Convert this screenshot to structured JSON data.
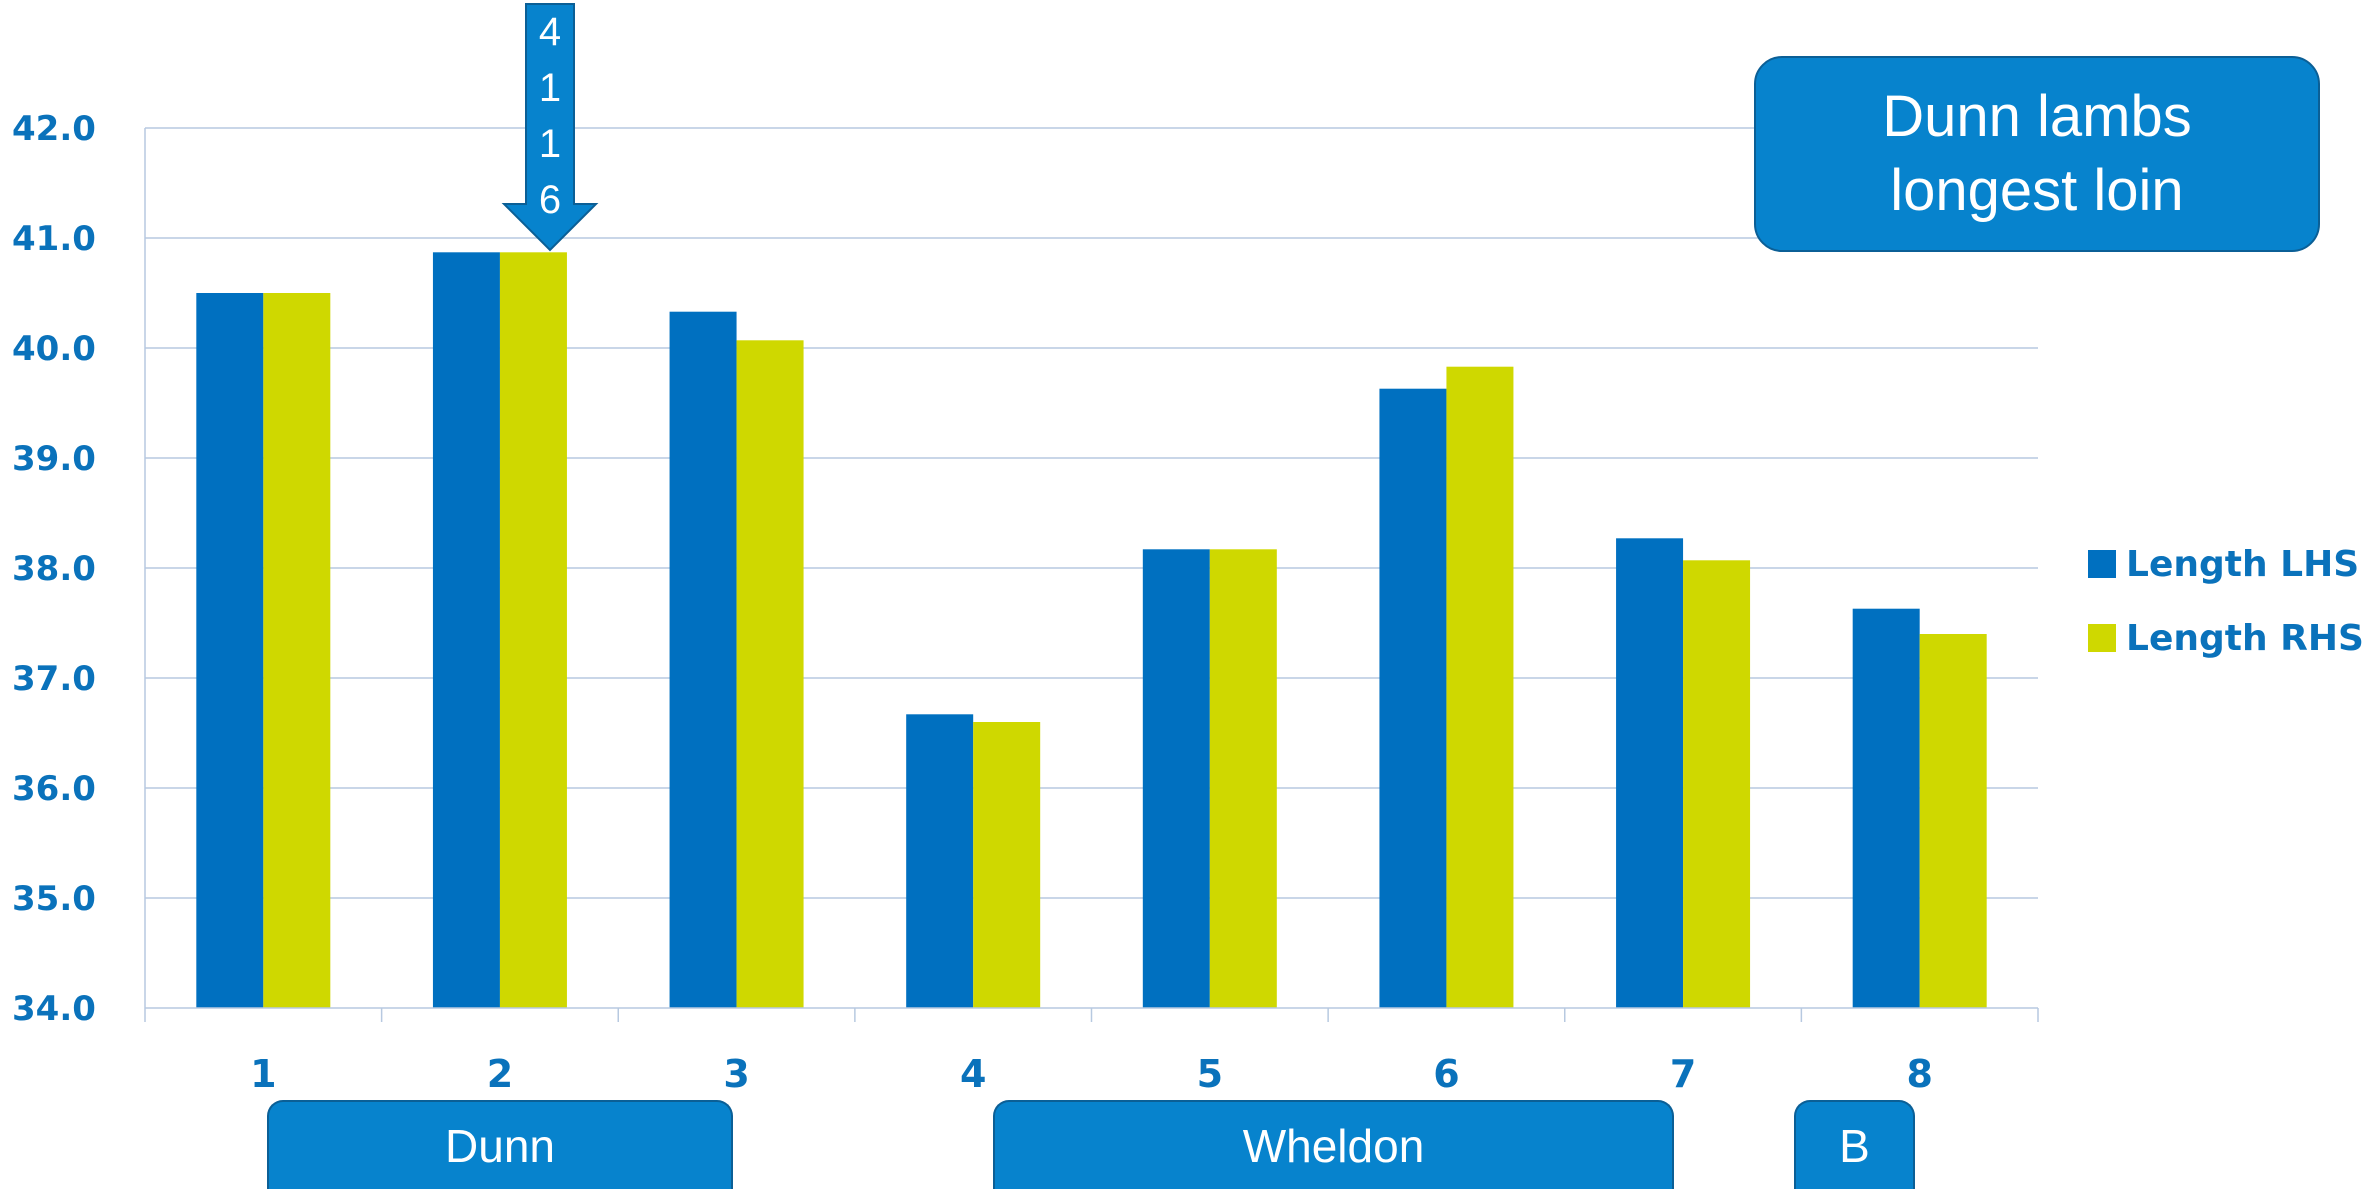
{
  "chart_data": {
    "type": "bar",
    "title": "",
    "xlabel": "",
    "ylabel": "",
    "categories": [
      "1",
      "2",
      "3",
      "4",
      "5",
      "6",
      "7",
      "8"
    ],
    "series": [
      {
        "name": "Length LHS",
        "color": "#0070c0",
        "values": [
          40.5,
          40.87,
          40.33,
          36.67,
          38.17,
          39.63,
          38.27,
          37.63
        ]
      },
      {
        "name": "Length RHS",
        "color": "#cfd800",
        "values": [
          40.5,
          40.87,
          40.07,
          36.6,
          38.17,
          39.83,
          38.07,
          37.4
        ]
      }
    ],
    "ylim": [
      34.0,
      42.0
    ],
    "yticks": [
      "34.0",
      "35.0",
      "36.0",
      "37.0",
      "38.0",
      "39.0",
      "40.0",
      "41.0",
      "42.0"
    ],
    "grid": true,
    "legend": "right"
  },
  "callout": {
    "text": "Dunn lambs\nlongest loin"
  },
  "arrow_marker": {
    "digits": [
      "4",
      "1",
      "1",
      "6"
    ],
    "category": "2"
  },
  "groups": [
    {
      "label": "Dunn",
      "from_category": "1",
      "to_category": "3"
    },
    {
      "label": "Wheldon",
      "from_category": "4",
      "to_category": "6"
    },
    {
      "label": "B",
      "from_category": "8",
      "to_category": "8"
    }
  ],
  "colors": {
    "axis_text": "#0a72bb",
    "box_fill": "#0783cd",
    "grid": "#b7c9e0"
  }
}
